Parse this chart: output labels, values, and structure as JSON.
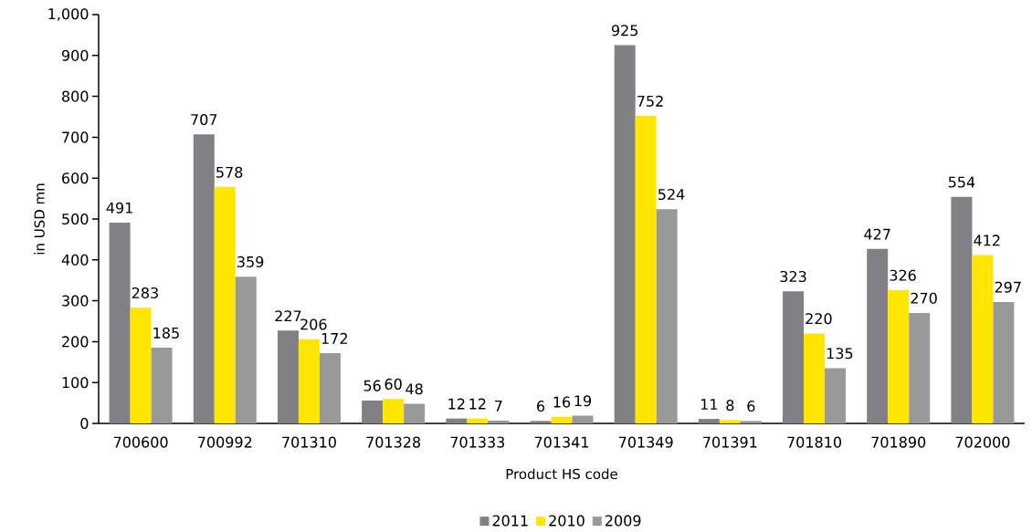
{
  "chart_data": {
    "type": "bar",
    "xlabel": "Product HS code",
    "ylabel": "in USD mn",
    "categories": [
      "700600",
      "700992",
      "701310",
      "701328",
      "701333",
      "701341",
      "701349",
      "701391",
      "701810",
      "701890",
      "702000"
    ],
    "series": [
      {
        "name": "2011",
        "color": "#808085",
        "values": [
          491,
          707,
          227,
          56,
          12,
          6,
          925,
          11,
          323,
          427,
          554
        ]
      },
      {
        "name": "2010",
        "color": "#ffe600",
        "values": [
          283,
          578,
          206,
          60,
          12,
          16,
          752,
          8,
          220,
          326,
          412
        ]
      },
      {
        "name": "2009",
        "color": "#999999",
        "values": [
          185,
          359,
          172,
          48,
          7,
          19,
          524,
          6,
          135,
          270,
          297
        ]
      }
    ],
    "ylim": [
      0,
      1000
    ],
    "yticks": [
      0,
      100,
      200,
      300,
      400,
      500,
      600,
      700,
      800,
      900,
      {
        "value": 1000,
        "label": "1,000"
      }
    ],
    "legend": "bottom",
    "data_labels": true
  }
}
